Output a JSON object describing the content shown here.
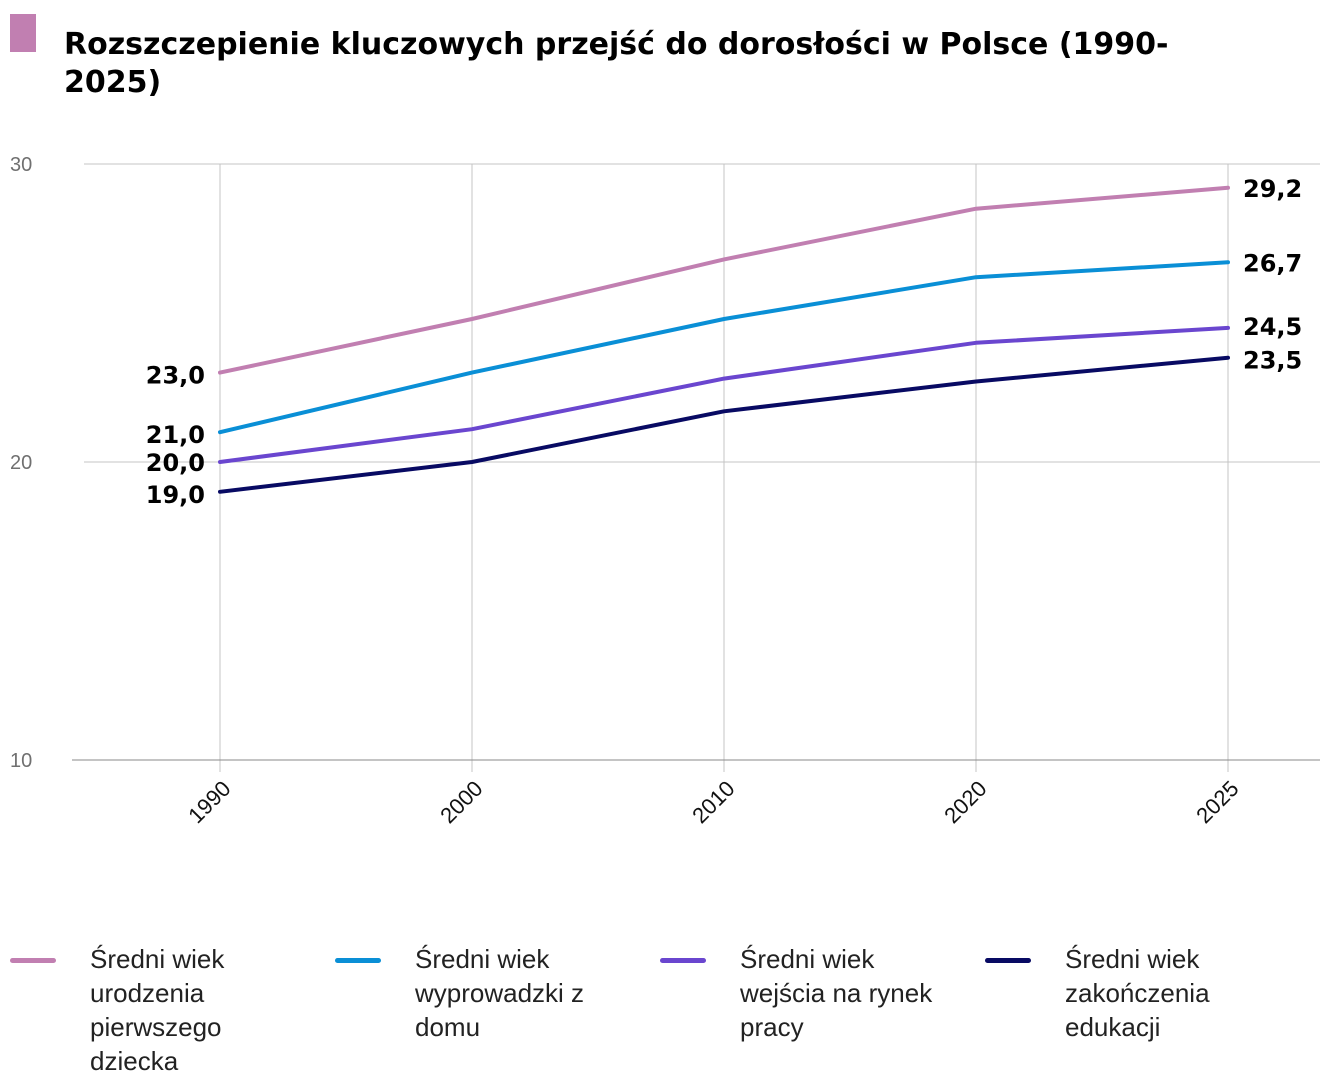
{
  "chart_data": {
    "type": "line",
    "title": "Rozszczepienie kluczowych przejść do dorosłości w Polsce (1990-2025)",
    "xlabel": "",
    "ylabel": "",
    "categories": [
      "1990",
      "2000",
      "2010",
      "2020",
      "2025"
    ],
    "y_ticks": [
      "30",
      "20",
      "10"
    ],
    "ylim": [
      10,
      30
    ],
    "grid": true,
    "legend_position": "bottom",
    "series": [
      {
        "name": "Średni wiek urodzenia pierwszego dziecka",
        "color": "#c17fb1",
        "values": [
          23.0,
          24.8,
          26.8,
          28.5,
          29.2
        ],
        "start_label": "23,0",
        "end_label": "29,2"
      },
      {
        "name": "Średni wiek wyprowadzki z domu",
        "color": "#0a8fd6",
        "values": [
          21.0,
          23.0,
          24.8,
          26.2,
          26.7
        ],
        "start_label": "21,0",
        "end_label": "26,7"
      },
      {
        "name": "Średni wiek wejścia na rynek pracy",
        "color": "#6a46cf",
        "values": [
          20.0,
          21.1,
          22.8,
          24.0,
          24.5
        ],
        "start_label": "20,0",
        "end_label": "24,5"
      },
      {
        "name": "Średni wiek zakończenia edukacji",
        "color": "#080a63",
        "values": [
          19.0,
          20.0,
          21.7,
          22.7,
          23.5
        ],
        "start_label": "19,0",
        "end_label": "23,5"
      }
    ]
  }
}
